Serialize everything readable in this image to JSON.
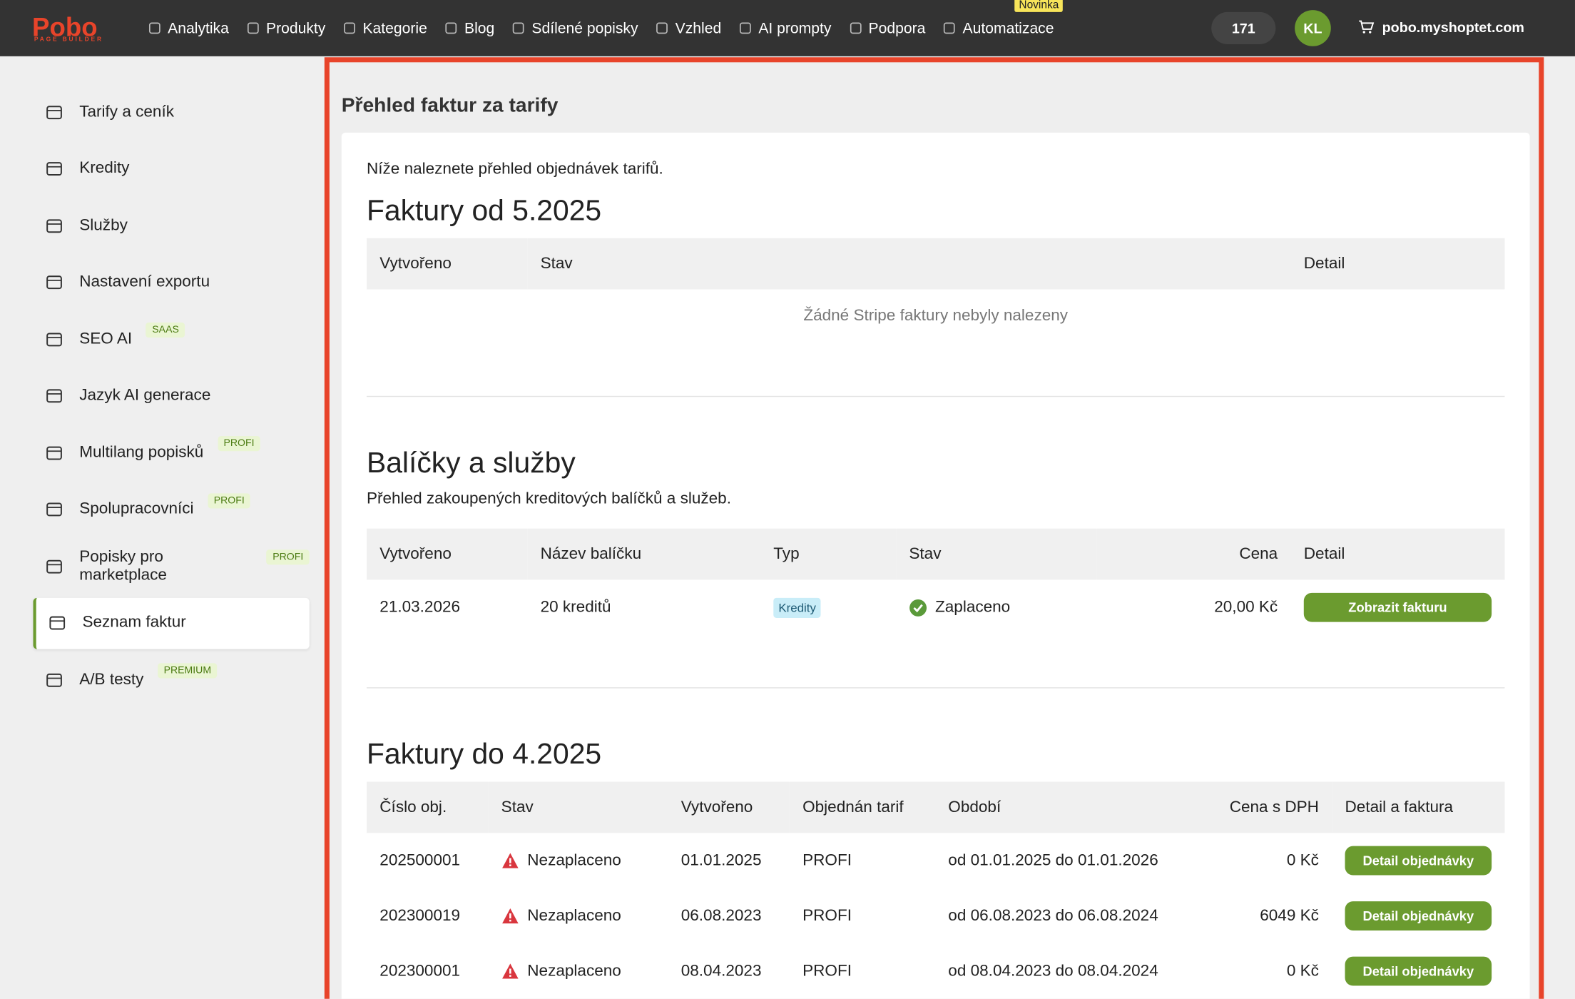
{
  "nav": {
    "logo": "Pobo",
    "logo_sub": "PAGE BUILDER",
    "items": [
      "Analytika",
      "Produkty",
      "Kategorie",
      "Blog",
      "Sdílené popisky",
      "Vzhled",
      "AI prompty",
      "Podpora",
      "Automatizace"
    ],
    "new_badge": "Novinka",
    "credits": 171,
    "avatar": "KL",
    "shop": "pobo.myshoptet.com"
  },
  "sidebar": [
    {
      "label": "Tarify a ceník"
    },
    {
      "label": "Kredity"
    },
    {
      "label": "Služby"
    },
    {
      "label": "Nastavení exportu"
    },
    {
      "label": "SEO AI",
      "badge": "SAAS"
    },
    {
      "label": "Jazyk AI generace"
    },
    {
      "label": "Multilang popisků",
      "badge": "PROFI"
    },
    {
      "label": "Spolupracovníci",
      "badge": "PROFI"
    },
    {
      "label": "Popisky pro marketplace",
      "badge": "PROFI"
    },
    {
      "label": "Seznam faktur"
    },
    {
      "label": "A/B testy",
      "badge": "PREMIUM"
    }
  ],
  "page": {
    "title": "Přehled faktur za tarify",
    "intro": "Níže naleznete přehled objednávek tarifů.",
    "stripe": {
      "heading": "Faktury od 5.2025",
      "columns": [
        "Vytvořeno",
        "Stav",
        "Detail"
      ],
      "empty": "Žádné Stripe faktury nebyly nalezeny"
    },
    "packages": {
      "heading": "Balíčky a služby",
      "description": "Přehled zakoupených kreditových balíčků a služeb.",
      "columns": [
        "Vytvořeno",
        "Název balíčku",
        "Typ",
        "Stav",
        "Cena",
        "Detail"
      ],
      "rows": [
        [
          "21.03.2026",
          "20 kreditů",
          "Kredity",
          "Zaplaceno",
          "20,00 Kč",
          "Zobrazit fakturu"
        ]
      ]
    },
    "legacy": {
      "heading": "Faktury do 4.2025",
      "columns": [
        "Číslo obj.",
        "Stav",
        "Vytvořeno",
        "Objednán tarif",
        "Období",
        "Cena s DPH",
        "Detail a faktura"
      ],
      "rows": [
        [
          "202500001",
          "Nezaplaceno",
          "01.01.2025",
          "PROFI",
          "od 01.01.2025 do 01.01.2026",
          "0 Kč",
          "Detail objednávky"
        ],
        [
          "202300019",
          "Nezaplaceno",
          "06.08.2023",
          "PROFI",
          "od 06.08.2023 do 06.08.2024",
          "6049 Kč",
          "Detail objednávky"
        ],
        [
          "202300001",
          "Nezaplaceno",
          "08.04.2023",
          "PROFI",
          "od 08.04.2023 do 08.04.2024",
          "0 Kč",
          "Detail objednávky"
        ]
      ]
    }
  }
}
